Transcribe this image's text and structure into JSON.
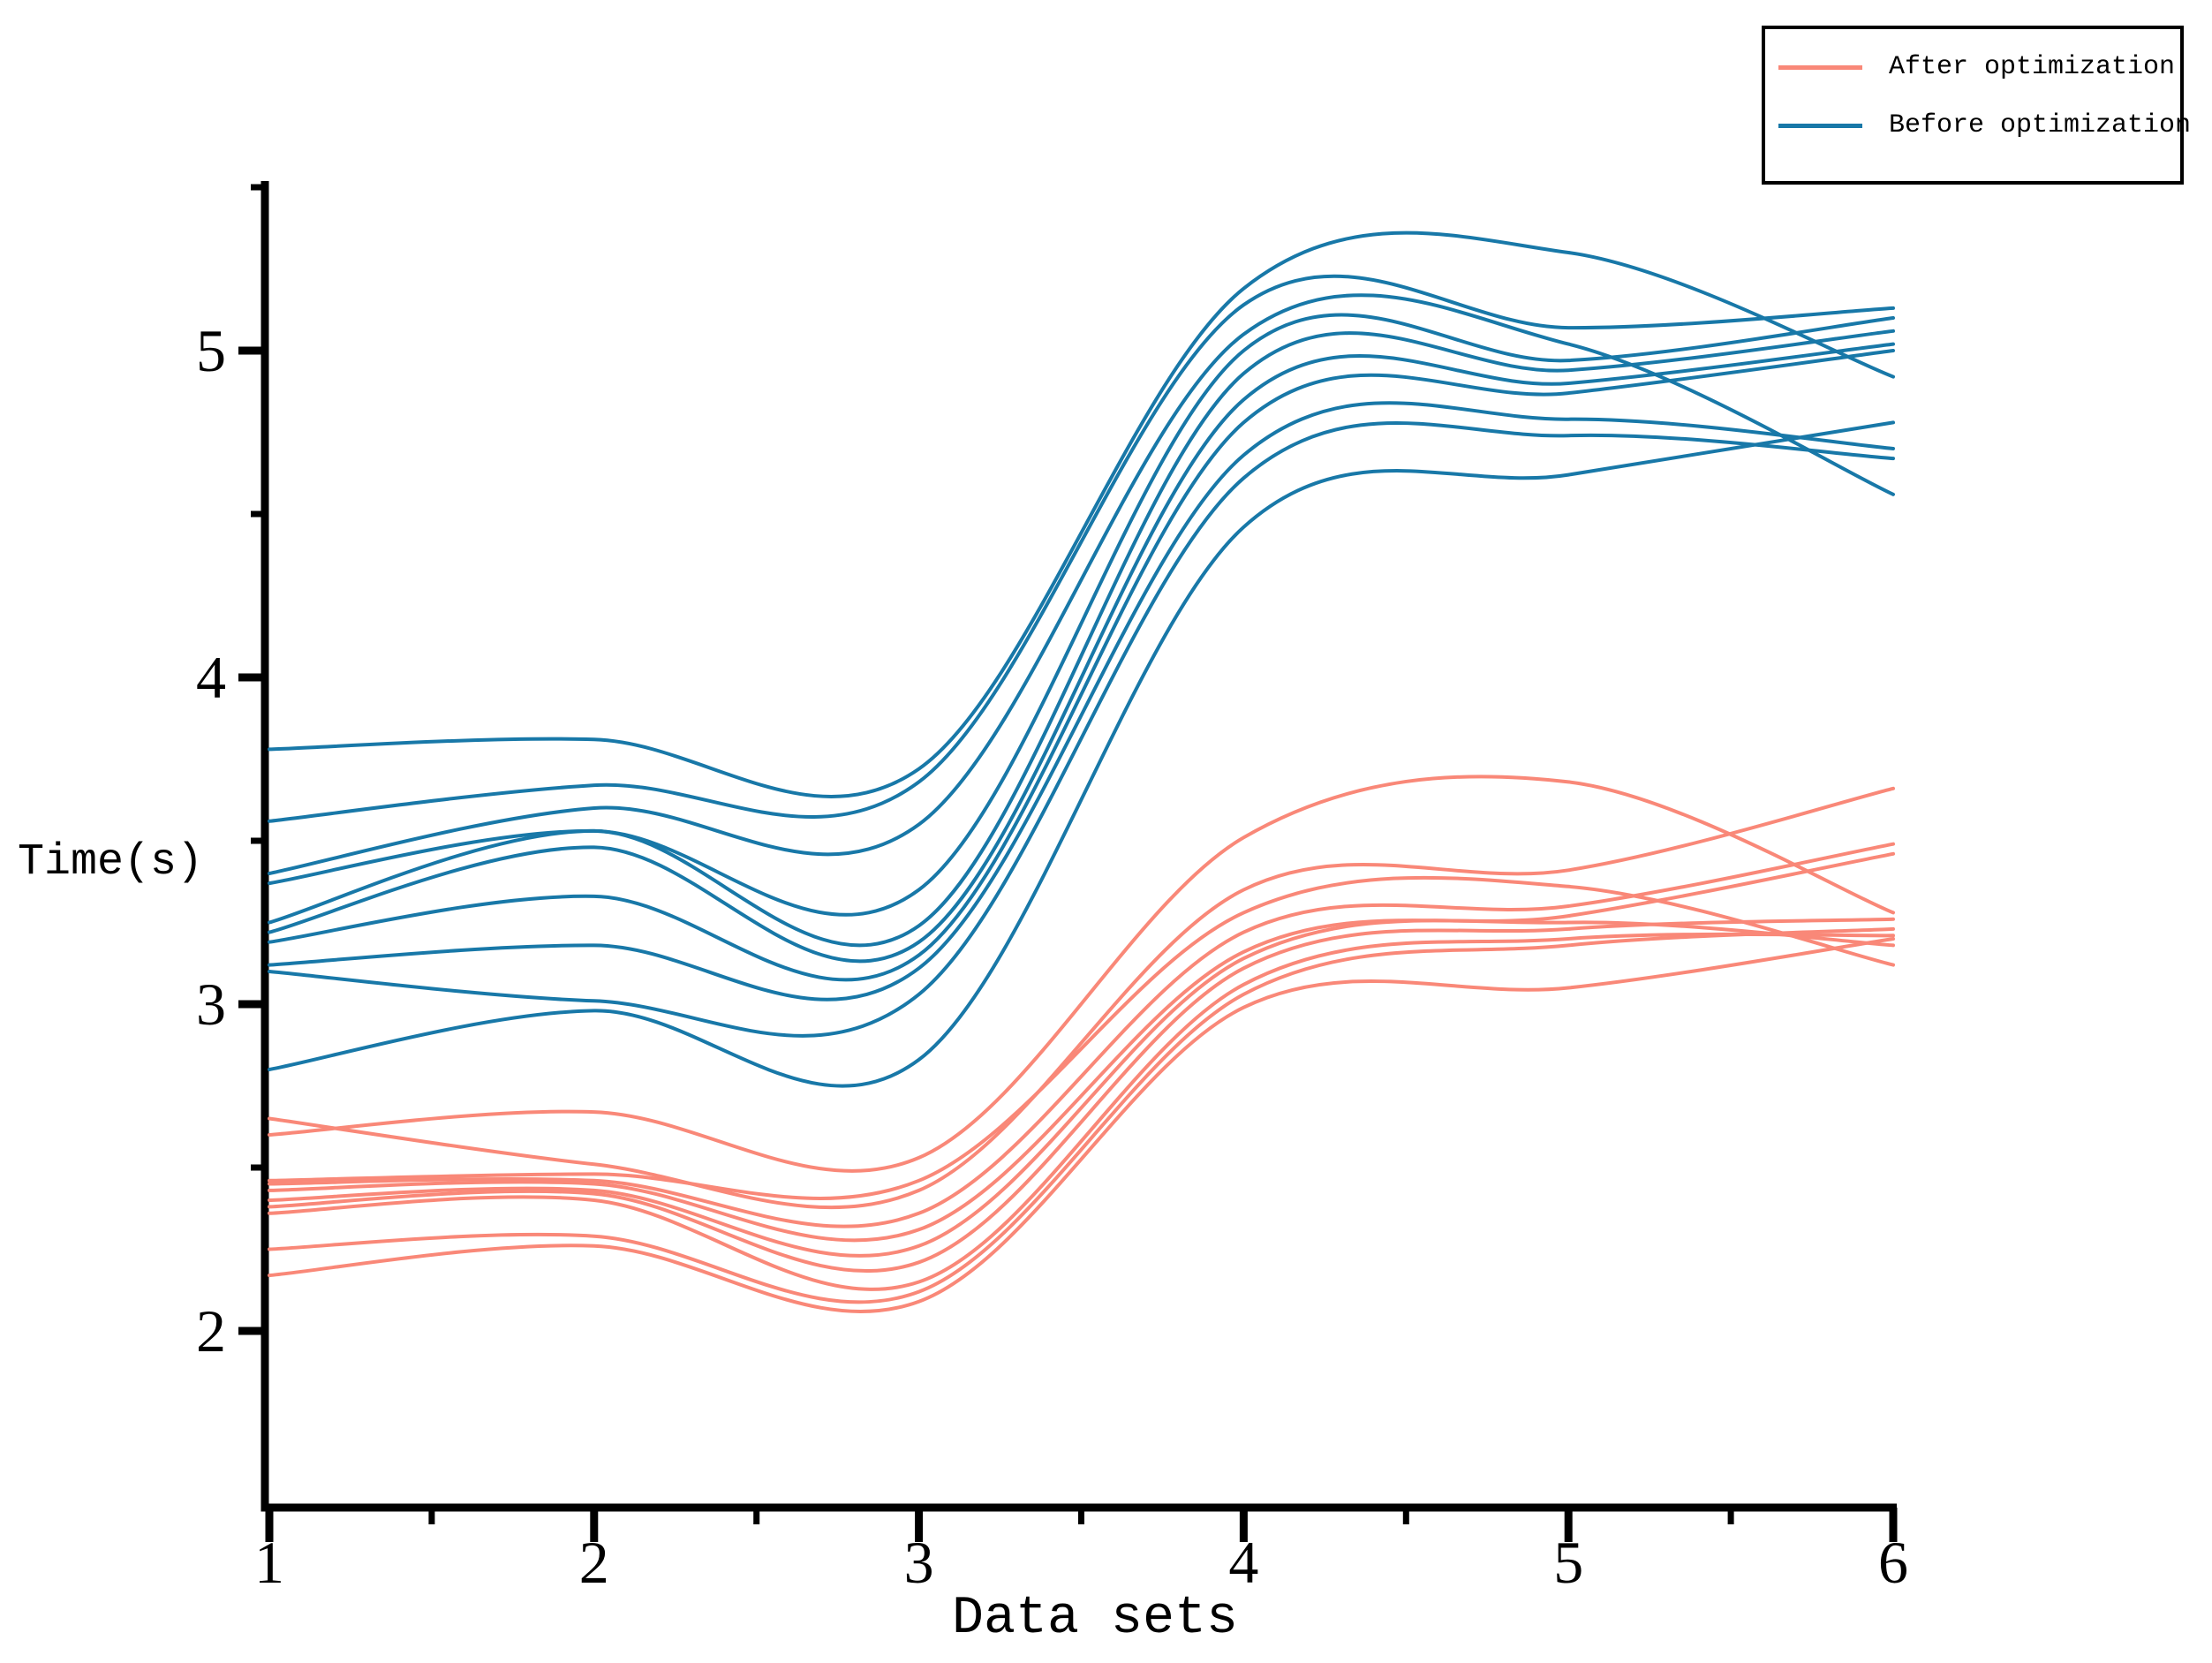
{
  "chart_data": {
    "type": "line",
    "title": "",
    "xlabel": "Data sets",
    "ylabel": "Time(s)",
    "x": [
      1,
      2,
      3,
      4,
      5,
      6
    ],
    "x_ticks": [
      1,
      2,
      3,
      4,
      5,
      6
    ],
    "x_minor_ticks": [
      1.5,
      2.5,
      3.5,
      4.5,
      5.5
    ],
    "y_ticks": [
      2,
      3,
      4,
      5
    ],
    "y_minor_ticks": [
      2.5,
      3.5,
      4.5,
      5.5
    ],
    "xlim": [
      1,
      6
    ],
    "ylim": [
      1.47,
      5.51
    ],
    "grid": false,
    "colors": {
      "after": "#f98878",
      "before": "#1878a8",
      "axis": "#000000"
    },
    "legend": {
      "position": "top-right",
      "items": [
        {
          "label": "After optimization",
          "color": "#f98878"
        },
        {
          "label": "Before optimization",
          "color": "#1878a8"
        }
      ]
    },
    "series": [
      {
        "name": "After optimization",
        "group": "after",
        "color": "#f98878",
        "values": [
          2.6,
          2.67,
          2.53,
          3.51,
          3.68,
          3.28
        ]
      },
      {
        "name": "After optimization",
        "group": "after",
        "color": "#f98878",
        "values": [
          2.65,
          2.51,
          2.43,
          3.35,
          3.41,
          3.66
        ]
      },
      {
        "name": "After optimization",
        "group": "after",
        "color": "#f98878",
        "values": [
          2.46,
          2.48,
          2.46,
          3.28,
          3.36,
          3.12
        ]
      },
      {
        "name": "After optimization",
        "group": "after",
        "color": "#f98878",
        "values": [
          2.45,
          2.46,
          2.36,
          3.22,
          3.3,
          3.49
        ]
      },
      {
        "name": "After optimization",
        "group": "after",
        "color": "#f98878",
        "values": [
          2.43,
          2.45,
          2.31,
          3.16,
          3.27,
          3.46
        ]
      },
      {
        "name": "After optimization",
        "group": "after",
        "color": "#f98878",
        "values": [
          2.4,
          2.43,
          2.26,
          3.14,
          3.25,
          3.18
        ]
      },
      {
        "name": "After optimization",
        "group": "after",
        "color": "#f98878",
        "values": [
          2.38,
          2.42,
          2.21,
          3.11,
          3.23,
          3.26
        ]
      },
      {
        "name": "After optimization",
        "group": "after",
        "color": "#f98878",
        "values": [
          2.36,
          2.4,
          2.15,
          3.06,
          3.2,
          3.21
        ]
      },
      {
        "name": "After optimization",
        "group": "after",
        "color": "#f98878",
        "values": [
          2.25,
          2.29,
          2.12,
          3.03,
          3.18,
          3.23
        ]
      },
      {
        "name": "After optimization",
        "group": "after",
        "color": "#f98878",
        "values": [
          2.17,
          2.26,
          2.09,
          2.99,
          3.05,
          3.2
        ]
      },
      {
        "name": "Before optimization",
        "group": "before",
        "color": "#1878a8",
        "values": [
          3.78,
          3.81,
          3.72,
          5.19,
          5.3,
          4.92
        ]
      },
      {
        "name": "Before optimization",
        "group": "before",
        "color": "#1878a8",
        "values": [
          3.56,
          3.67,
          3.68,
          5.14,
          5.07,
          5.13
        ]
      },
      {
        "name": "Before optimization",
        "group": "before",
        "color": "#1878a8",
        "values": [
          3.4,
          3.6,
          3.55,
          5.05,
          5.02,
          4.56
        ]
      },
      {
        "name": "Before optimization",
        "group": "before",
        "color": "#1878a8",
        "values": [
          3.37,
          3.53,
          3.35,
          5.0,
          4.97,
          5.1
        ]
      },
      {
        "name": "Before optimization",
        "group": "before",
        "color": "#1878a8",
        "values": [
          3.25,
          3.53,
          3.24,
          4.93,
          4.94,
          5.06
        ]
      },
      {
        "name": "Before optimization",
        "group": "before",
        "color": "#1878a8",
        "values": [
          3.22,
          3.48,
          3.19,
          4.85,
          4.9,
          5.02
        ]
      },
      {
        "name": "Before optimization",
        "group": "before",
        "color": "#1878a8",
        "values": [
          3.19,
          3.33,
          3.15,
          4.78,
          4.87,
          5.0
        ]
      },
      {
        "name": "Before optimization",
        "group": "before",
        "color": "#1878a8",
        "values": [
          3.12,
          3.18,
          3.11,
          4.68,
          4.79,
          4.7
        ]
      },
      {
        "name": "Before optimization",
        "group": "before",
        "color": "#1878a8",
        "values": [
          3.1,
          3.01,
          3.03,
          4.61,
          4.74,
          4.67
        ]
      },
      {
        "name": "Before optimization",
        "group": "before",
        "color": "#1878a8",
        "values": [
          2.8,
          2.98,
          2.83,
          4.46,
          4.62,
          4.78
        ]
      }
    ]
  }
}
